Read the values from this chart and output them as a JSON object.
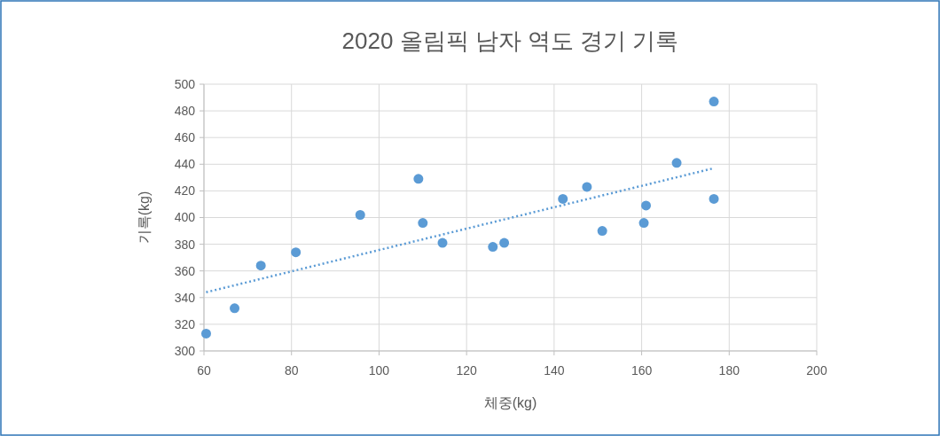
{
  "chart_data": {
    "type": "scatter",
    "title": "2020 올림픽 남자 역도 경기 기록",
    "xlabel": "체중(kg)",
    "ylabel": "기록(kg)",
    "x": [
      60.5,
      67,
      73,
      81,
      95.7,
      109,
      110,
      114.5,
      126,
      128.6,
      142,
      147.5,
      151,
      160.5,
      161,
      168,
      176.5,
      176.5
    ],
    "series": [
      {
        "color": "#5b9bd5",
        "marker": "circle",
        "values": [
          313,
          332,
          364,
          374,
          402,
          429,
          396,
          381,
          378,
          381,
          414,
          423,
          390,
          396,
          409,
          441,
          487,
          414
        ]
      },
      {
        "type": "line",
        "color": "#5b9bd5",
        "line_style": "dotted",
        "marker": "none",
        "x": [
          60.5,
          176.5
        ],
        "values": [
          344,
          437
        ]
      }
    ],
    "xlim": [
      60,
      200
    ],
    "xticks": [
      60,
      80,
      100,
      120,
      140,
      160,
      180,
      200
    ],
    "ylim": [
      300,
      500
    ],
    "yticks": [
      300,
      320,
      340,
      360,
      380,
      400,
      420,
      440,
      460,
      480,
      500
    ],
    "grid": true
  }
}
